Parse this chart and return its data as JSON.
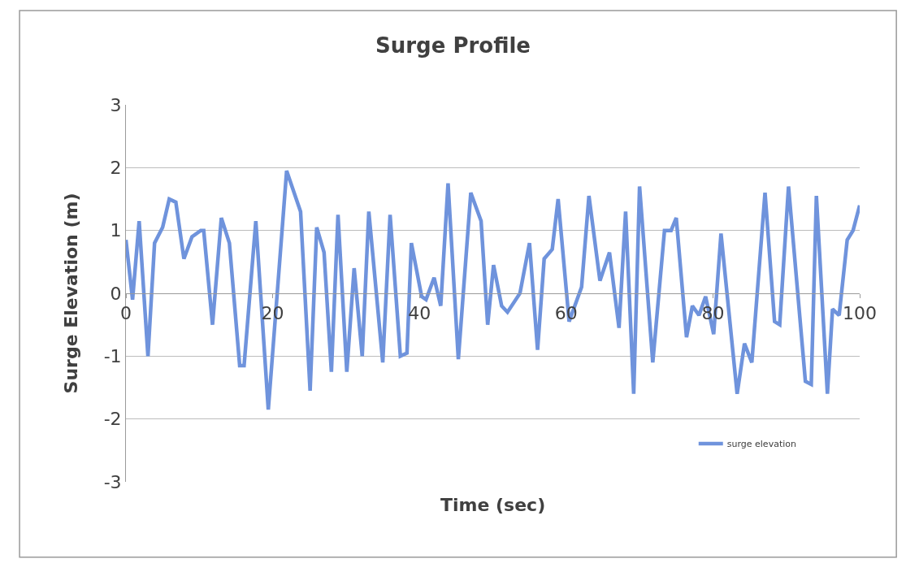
{
  "chart_data": {
    "type": "line",
    "title": "Surge Profile",
    "xlabel": "Time (sec)",
    "ylabel": "Surge Elevation (m)",
    "x": [
      0,
      0.9,
      1.8,
      3.0,
      3.9,
      5,
      5.9,
      6.8,
      7.9,
      9,
      10.2,
      10.6,
      11.8,
      13,
      14.1,
      15.5,
      16.1,
      17.7,
      19.4,
      21.9,
      23.8,
      25.1,
      26,
      27,
      28,
      28.9,
      30.1,
      31.1,
      32.2,
      33.1,
      35,
      36,
      37.4,
      38.3,
      38.9,
      40.3,
      40.9,
      42,
      42.9,
      43.9,
      45.3,
      47,
      48.4,
      49.3,
      50.1,
      51.2,
      52,
      53.7,
      55,
      56.1,
      57,
      58.1,
      58.9,
      60.4,
      62.1,
      63.1,
      64.6,
      65.9,
      67.2,
      68.1,
      69.2,
      70,
      71.8,
      73.4,
      74.3,
      75,
      76.4,
      77.2,
      78.1,
      79,
      80.1,
      81.1,
      83.3,
      84.3,
      85.3,
      87.1,
      88.4,
      89.1,
      90.3,
      92.6,
      93.4,
      94.1,
      95.6,
      96.3,
      97.2,
      98.3,
      99.1,
      100
    ],
    "series": [
      {
        "name": "surge elevation",
        "color": "#6f93dc",
        "values": [
          0.85,
          -0.1,
          1.15,
          -1.0,
          0.8,
          1.05,
          1.5,
          1.45,
          0.55,
          0.9,
          1.0,
          1.0,
          -0.5,
          1.2,
          0.8,
          -1.15,
          -1.15,
          1.15,
          -1.85,
          1.95,
          1.3,
          -1.55,
          1.05,
          0.65,
          -1.25,
          1.25,
          -1.25,
          0.4,
          -1.0,
          1.3,
          -1.1,
          1.25,
          -1.0,
          -0.95,
          0.8,
          -0.05,
          -0.1,
          0.25,
          -0.2,
          1.75,
          -1.05,
          1.6,
          1.15,
          -0.5,
          0.45,
          -0.2,
          -0.3,
          0,
          0.8,
          -0.9,
          0.55,
          0.7,
          1.5,
          -0.45,
          0.1,
          1.55,
          0.2,
          0.65,
          -0.55,
          1.3,
          -1.6,
          1.7,
          -1.1,
          1.0,
          1.0,
          1.2,
          -0.7,
          -0.2,
          -0.35,
          -0.05,
          -0.65,
          0.95,
          -1.6,
          -0.8,
          -1.1,
          1.6,
          -0.45,
          -0.5,
          1.7,
          -1.4,
          -1.45,
          1.55,
          -1.6,
          -0.25,
          -0.35,
          0.85,
          1.0,
          1.4
        ]
      }
    ],
    "xlim": [
      0,
      100
    ],
    "xticks": [
      0,
      20,
      40,
      60,
      80,
      100
    ],
    "ylim": [
      -3,
      3
    ],
    "yticks": [
      -3,
      -2,
      -1,
      0,
      1,
      2,
      3
    ],
    "grid": "y",
    "legend": "bottom right",
    "marker": "none",
    "line_style": "solid"
  }
}
